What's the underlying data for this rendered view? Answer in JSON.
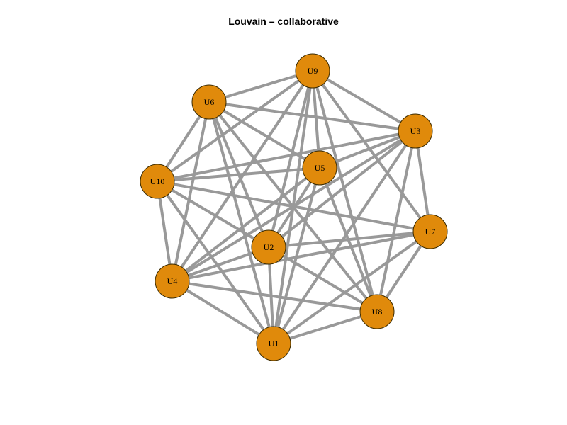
{
  "title": "Louvain – collaborative",
  "colors": {
    "node_fill": "#e08a0b",
    "node_stroke": "#3a2a00",
    "edge": "#999999",
    "label": "#000000"
  },
  "graph": {
    "nodes": [
      {
        "id": "U1",
        "label": "U1"
      },
      {
        "id": "U2",
        "label": "U2"
      },
      {
        "id": "U3",
        "label": "U3"
      },
      {
        "id": "U4",
        "label": "U4"
      },
      {
        "id": "U5",
        "label": "U5"
      },
      {
        "id": "U6",
        "label": "U6"
      },
      {
        "id": "U7",
        "label": "U7"
      },
      {
        "id": "U8",
        "label": "U8"
      },
      {
        "id": "U9",
        "label": "U9"
      },
      {
        "id": "U10",
        "label": "U10"
      }
    ],
    "edges": [
      [
        "U9",
        "U6"
      ],
      [
        "U9",
        "U3"
      ],
      [
        "U9",
        "U10"
      ],
      [
        "U9",
        "U4"
      ],
      [
        "U9",
        "U2"
      ],
      [
        "U9",
        "U1"
      ],
      [
        "U9",
        "U8"
      ],
      [
        "U9",
        "U7"
      ],
      [
        "U9",
        "U5"
      ],
      [
        "U6",
        "U3"
      ],
      [
        "U6",
        "U10"
      ],
      [
        "U6",
        "U4"
      ],
      [
        "U6",
        "U2"
      ],
      [
        "U6",
        "U1"
      ],
      [
        "U6",
        "U8"
      ],
      [
        "U6",
        "U5"
      ],
      [
        "U3",
        "U10"
      ],
      [
        "U3",
        "U5"
      ],
      [
        "U3",
        "U2"
      ],
      [
        "U3",
        "U4"
      ],
      [
        "U3",
        "U1"
      ],
      [
        "U3",
        "U8"
      ],
      [
        "U3",
        "U7"
      ],
      [
        "U10",
        "U5"
      ],
      [
        "U10",
        "U4"
      ],
      [
        "U10",
        "U2"
      ],
      [
        "U10",
        "U1"
      ],
      [
        "U10",
        "U7"
      ],
      [
        "U5",
        "U2"
      ],
      [
        "U5",
        "U4"
      ],
      [
        "U5",
        "U1"
      ],
      [
        "U5",
        "U8"
      ],
      [
        "U7",
        "U2"
      ],
      [
        "U7",
        "U4"
      ],
      [
        "U7",
        "U8"
      ],
      [
        "U7",
        "U1"
      ],
      [
        "U2",
        "U4"
      ],
      [
        "U2",
        "U1"
      ],
      [
        "U2",
        "U8"
      ],
      [
        "U4",
        "U1"
      ],
      [
        "U4",
        "U8"
      ],
      [
        "U8",
        "U1"
      ]
    ]
  }
}
